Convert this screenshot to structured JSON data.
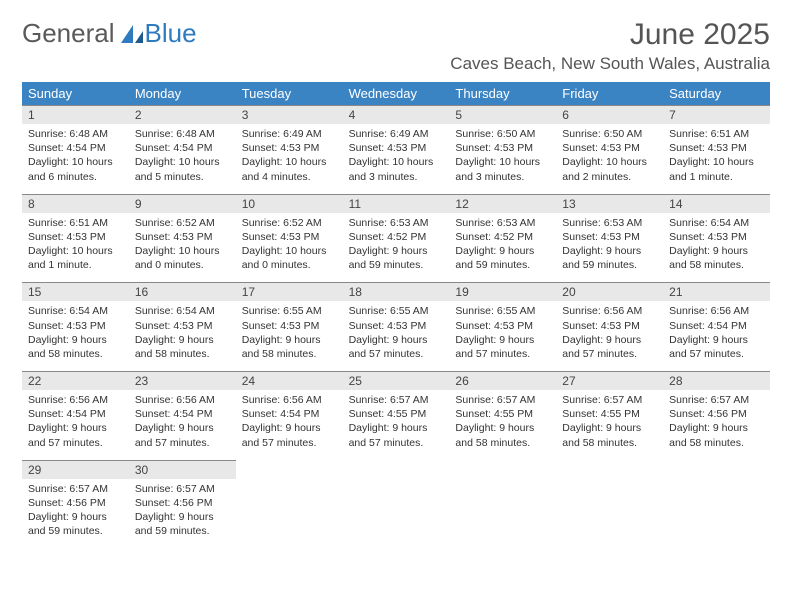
{
  "brand": {
    "word1": "General",
    "word2": "Blue"
  },
  "title": "June 2025",
  "location": "Caves Beach, New South Wales, Australia",
  "colors": {
    "header_bg": "#3b84c4",
    "header_text": "#ffffff",
    "daynum_bg": "#e8e8e8",
    "daynum_border": "#888888",
    "text": "#333333",
    "brand_gray": "#5a5a5a",
    "brand_blue": "#2f7bbf"
  },
  "dayNames": [
    "Sunday",
    "Monday",
    "Tuesday",
    "Wednesday",
    "Thursday",
    "Friday",
    "Saturday"
  ],
  "days": [
    {
      "n": 1,
      "sr": "6:48 AM",
      "ss": "4:54 PM",
      "dl": "10 hours and 6 minutes."
    },
    {
      "n": 2,
      "sr": "6:48 AM",
      "ss": "4:54 PM",
      "dl": "10 hours and 5 minutes."
    },
    {
      "n": 3,
      "sr": "6:49 AM",
      "ss": "4:53 PM",
      "dl": "10 hours and 4 minutes."
    },
    {
      "n": 4,
      "sr": "6:49 AM",
      "ss": "4:53 PM",
      "dl": "10 hours and 3 minutes."
    },
    {
      "n": 5,
      "sr": "6:50 AM",
      "ss": "4:53 PM",
      "dl": "10 hours and 3 minutes."
    },
    {
      "n": 6,
      "sr": "6:50 AM",
      "ss": "4:53 PM",
      "dl": "10 hours and 2 minutes."
    },
    {
      "n": 7,
      "sr": "6:51 AM",
      "ss": "4:53 PM",
      "dl": "10 hours and 1 minute."
    },
    {
      "n": 8,
      "sr": "6:51 AM",
      "ss": "4:53 PM",
      "dl": "10 hours and 1 minute."
    },
    {
      "n": 9,
      "sr": "6:52 AM",
      "ss": "4:53 PM",
      "dl": "10 hours and 0 minutes."
    },
    {
      "n": 10,
      "sr": "6:52 AM",
      "ss": "4:53 PM",
      "dl": "10 hours and 0 minutes."
    },
    {
      "n": 11,
      "sr": "6:53 AM",
      "ss": "4:52 PM",
      "dl": "9 hours and 59 minutes."
    },
    {
      "n": 12,
      "sr": "6:53 AM",
      "ss": "4:52 PM",
      "dl": "9 hours and 59 minutes."
    },
    {
      "n": 13,
      "sr": "6:53 AM",
      "ss": "4:53 PM",
      "dl": "9 hours and 59 minutes."
    },
    {
      "n": 14,
      "sr": "6:54 AM",
      "ss": "4:53 PM",
      "dl": "9 hours and 58 minutes."
    },
    {
      "n": 15,
      "sr": "6:54 AM",
      "ss": "4:53 PM",
      "dl": "9 hours and 58 minutes."
    },
    {
      "n": 16,
      "sr": "6:54 AM",
      "ss": "4:53 PM",
      "dl": "9 hours and 58 minutes."
    },
    {
      "n": 17,
      "sr": "6:55 AM",
      "ss": "4:53 PM",
      "dl": "9 hours and 58 minutes."
    },
    {
      "n": 18,
      "sr": "6:55 AM",
      "ss": "4:53 PM",
      "dl": "9 hours and 57 minutes."
    },
    {
      "n": 19,
      "sr": "6:55 AM",
      "ss": "4:53 PM",
      "dl": "9 hours and 57 minutes."
    },
    {
      "n": 20,
      "sr": "6:56 AM",
      "ss": "4:53 PM",
      "dl": "9 hours and 57 minutes."
    },
    {
      "n": 21,
      "sr": "6:56 AM",
      "ss": "4:54 PM",
      "dl": "9 hours and 57 minutes."
    },
    {
      "n": 22,
      "sr": "6:56 AM",
      "ss": "4:54 PM",
      "dl": "9 hours and 57 minutes."
    },
    {
      "n": 23,
      "sr": "6:56 AM",
      "ss": "4:54 PM",
      "dl": "9 hours and 57 minutes."
    },
    {
      "n": 24,
      "sr": "6:56 AM",
      "ss": "4:54 PM",
      "dl": "9 hours and 57 minutes."
    },
    {
      "n": 25,
      "sr": "6:57 AM",
      "ss": "4:55 PM",
      "dl": "9 hours and 57 minutes."
    },
    {
      "n": 26,
      "sr": "6:57 AM",
      "ss": "4:55 PM",
      "dl": "9 hours and 58 minutes."
    },
    {
      "n": 27,
      "sr": "6:57 AM",
      "ss": "4:55 PM",
      "dl": "9 hours and 58 minutes."
    },
    {
      "n": 28,
      "sr": "6:57 AM",
      "ss": "4:56 PM",
      "dl": "9 hours and 58 minutes."
    },
    {
      "n": 29,
      "sr": "6:57 AM",
      "ss": "4:56 PM",
      "dl": "9 hours and 59 minutes."
    },
    {
      "n": 30,
      "sr": "6:57 AM",
      "ss": "4:56 PM",
      "dl": "9 hours and 59 minutes."
    }
  ],
  "labels": {
    "sunrise": "Sunrise:",
    "sunset": "Sunset:",
    "daylight": "Daylight:"
  },
  "layout": {
    "startOffset": 0,
    "totalCells": 35
  }
}
